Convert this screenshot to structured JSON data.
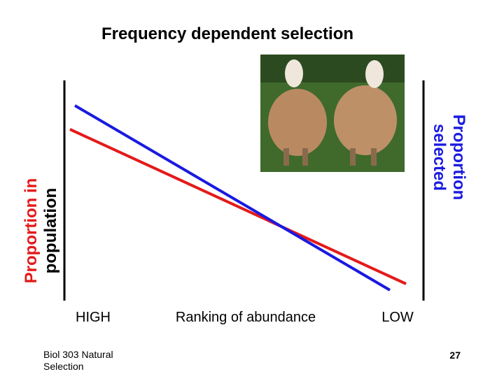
{
  "title": "Frequency dependent selection",
  "left_axis_label": [
    "Proportion in",
    "population"
  ],
  "right_axis_label": [
    "Proportion",
    "selected"
  ],
  "bottom_labels": {
    "left": "HIGH",
    "center": "Ranking of abundance",
    "right": "LOW"
  },
  "footer": {
    "course": [
      "Biol 303 Natural",
      "Selection"
    ],
    "page": "27"
  }
}
